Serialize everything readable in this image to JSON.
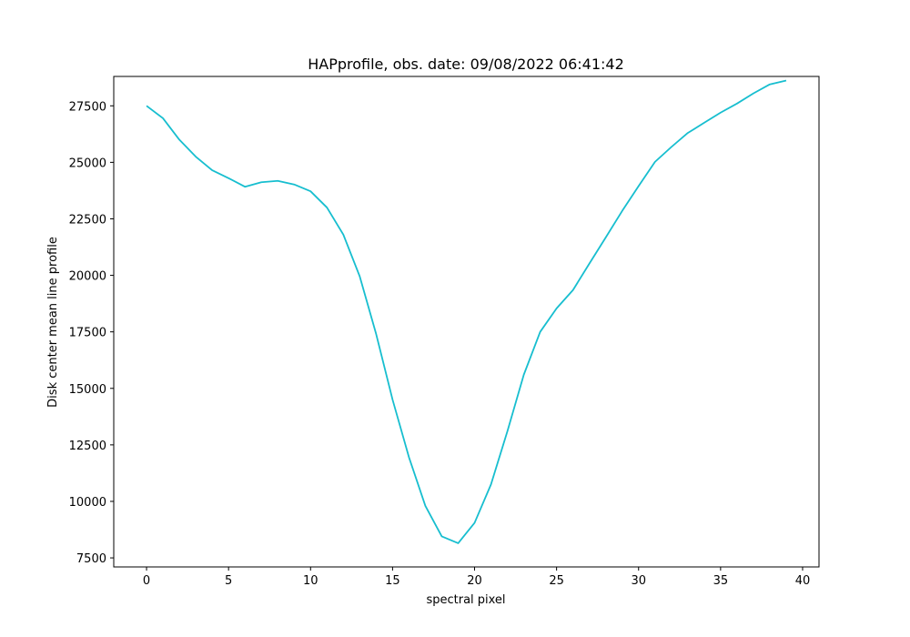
{
  "chart_data": {
    "type": "line",
    "title": "HAPprofile, obs. date: 09/08/2022 06:41:42",
    "xlabel": "spectral pixel",
    "ylabel": "Disk center mean line profile",
    "xlim": [
      -2,
      41
    ],
    "ylim": [
      7100,
      28800
    ],
    "xticks": [
      0,
      5,
      10,
      15,
      20,
      25,
      30,
      35,
      40
    ],
    "yticks": [
      7500,
      10000,
      12500,
      15000,
      17500,
      20000,
      22500,
      25000,
      27500
    ],
    "grid": false,
    "series": [
      {
        "color": "#17becf",
        "x": [
          0,
          1,
          2,
          3,
          4,
          5,
          6,
          7,
          8,
          9,
          10,
          11,
          12,
          13,
          14,
          15,
          16,
          17,
          18,
          19,
          20,
          21,
          22,
          23,
          24,
          25,
          26,
          27,
          28,
          29,
          30,
          31,
          32,
          33,
          34,
          35,
          36,
          37,
          38,
          39
        ],
        "y": [
          27500,
          26950,
          26000,
          25250,
          24650,
          24300,
          23920,
          24120,
          24180,
          24020,
          23720,
          23000,
          21800,
          19950,
          17400,
          14500,
          11950,
          9800,
          8450,
          8150,
          9050,
          10750,
          13100,
          15600,
          17500,
          18540,
          19350,
          20520,
          21680,
          22850,
          23950,
          25020,
          25680,
          26300,
          26750,
          27200,
          27600,
          28050,
          28450,
          28620
        ]
      }
    ]
  }
}
